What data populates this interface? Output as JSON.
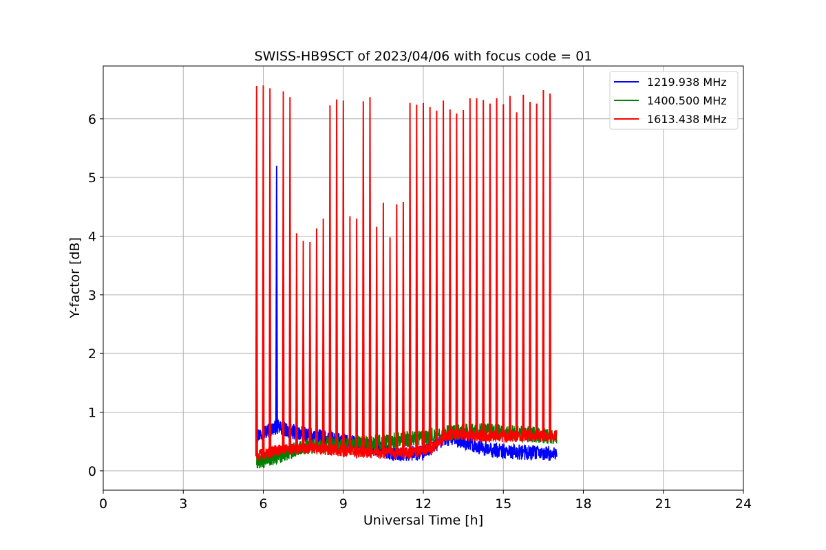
{
  "chart_data": {
    "type": "line",
    "title": "SWISS-HB9SCT of 2023/04/06 with focus code = 01",
    "xlabel": "Universal Time [h]",
    "ylabel": "Y-factor [dB]",
    "xlim": [
      0,
      24
    ],
    "ylim": [
      -0.33,
      6.9
    ],
    "xticks": [
      0,
      3,
      6,
      9,
      12,
      15,
      18,
      21,
      24
    ],
    "yticks": [
      0,
      1,
      2,
      3,
      4,
      5,
      6
    ],
    "grid": true,
    "legend_position": "top-right",
    "data_range_x": [
      5.75,
      17.0
    ],
    "series": [
      {
        "name": "1219.938 MHz",
        "color": "#0000ff",
        "baseline": [
          [
            5.75,
            0.6
          ],
          [
            6.5,
            0.75
          ],
          [
            7.2,
            0.65
          ],
          [
            8.5,
            0.55
          ],
          [
            10.0,
            0.42
          ],
          [
            11.0,
            0.28
          ],
          [
            12.0,
            0.3
          ],
          [
            12.8,
            0.55
          ],
          [
            13.5,
            0.5
          ],
          [
            14.5,
            0.35
          ],
          [
            15.5,
            0.32
          ],
          [
            16.5,
            0.3
          ],
          [
            17.0,
            0.3
          ]
        ],
        "noise": 0.13,
        "spikes": [
          [
            6.5,
            5.2
          ]
        ]
      },
      {
        "name": "1400.500 MHz",
        "color": "#008000",
        "baseline": [
          [
            5.75,
            0.15
          ],
          [
            6.5,
            0.25
          ],
          [
            7.5,
            0.42
          ],
          [
            9.0,
            0.45
          ],
          [
            10.0,
            0.48
          ],
          [
            11.0,
            0.52
          ],
          [
            12.0,
            0.58
          ],
          [
            13.0,
            0.65
          ],
          [
            14.0,
            0.68
          ],
          [
            15.0,
            0.65
          ],
          [
            16.0,
            0.62
          ],
          [
            17.0,
            0.58
          ]
        ],
        "noise": 0.14,
        "spikes": []
      },
      {
        "name": "1613.438 MHz",
        "color": "#ff0000",
        "baseline": [
          [
            5.75,
            0.25
          ],
          [
            6.5,
            0.35
          ],
          [
            7.5,
            0.38
          ],
          [
            8.5,
            0.36
          ],
          [
            9.5,
            0.32
          ],
          [
            10.5,
            0.3
          ],
          [
            11.5,
            0.3
          ],
          [
            12.3,
            0.38
          ],
          [
            13.0,
            0.62
          ],
          [
            14.0,
            0.6
          ],
          [
            15.0,
            0.58
          ],
          [
            16.0,
            0.6
          ],
          [
            17.0,
            0.6
          ]
        ],
        "noise": 0.1,
        "spikes": [
          [
            5.75,
            6.56
          ],
          [
            6.0,
            6.57
          ],
          [
            6.25,
            6.52
          ],
          [
            6.75,
            6.47
          ],
          [
            7.0,
            6.37
          ],
          [
            7.25,
            4.05
          ],
          [
            7.5,
            3.92
          ],
          [
            7.75,
            3.9
          ],
          [
            8.0,
            4.13
          ],
          [
            8.25,
            4.3
          ],
          [
            8.5,
            6.23
          ],
          [
            8.75,
            6.33
          ],
          [
            9.0,
            6.31
          ],
          [
            9.25,
            4.34
          ],
          [
            9.5,
            4.3
          ],
          [
            9.75,
            6.3
          ],
          [
            10.0,
            6.37
          ],
          [
            10.25,
            4.16
          ],
          [
            10.5,
            4.57
          ],
          [
            10.75,
            3.98
          ],
          [
            11.0,
            4.54
          ],
          [
            11.25,
            4.58
          ],
          [
            11.5,
            6.27
          ],
          [
            11.75,
            6.24
          ],
          [
            12.0,
            6.27
          ],
          [
            12.25,
            6.2
          ],
          [
            12.5,
            6.14
          ],
          [
            12.75,
            6.31
          ],
          [
            13.0,
            6.16
          ],
          [
            13.25,
            6.09
          ],
          [
            13.5,
            6.15
          ],
          [
            13.75,
            6.35
          ],
          [
            14.0,
            6.35
          ],
          [
            14.25,
            6.32
          ],
          [
            14.5,
            6.26
          ],
          [
            14.75,
            6.35
          ],
          [
            15.0,
            6.25
          ],
          [
            15.25,
            6.39
          ],
          [
            15.5,
            6.11
          ],
          [
            15.75,
            6.41
          ],
          [
            16.0,
            6.29
          ],
          [
            16.25,
            6.26
          ],
          [
            16.5,
            6.49
          ],
          [
            16.75,
            6.43
          ]
        ]
      }
    ]
  }
}
